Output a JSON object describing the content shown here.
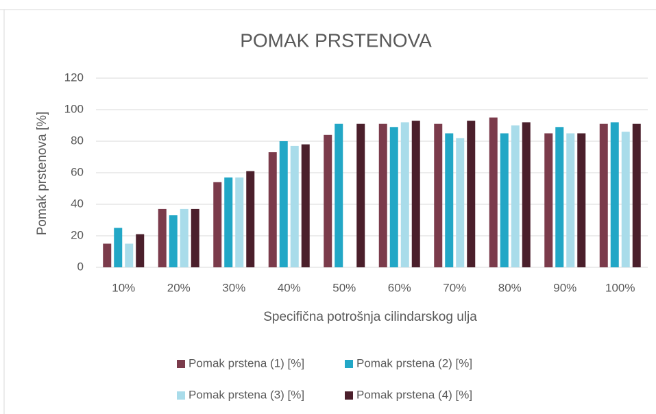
{
  "chart_data": {
    "type": "bar",
    "title": "POMAK PRSTENOVA",
    "x_label": "Specifična potrošnja cilindarskog ulja",
    "y_label": "Pomak prstenova [%]",
    "categories": [
      "10%",
      "20%",
      "30%",
      "40%",
      "50%",
      "60%",
      "70%",
      "80%",
      "90%",
      "100%"
    ],
    "series": [
      {
        "name": "Pomak prstena (1) [%]",
        "color": "#7b3b4b",
        "values": [
          15,
          37,
          54,
          73,
          84,
          91,
          91,
          95,
          85,
          91
        ]
      },
      {
        "name": "Pomak prstena (2) [%]",
        "color": "#22a7c6",
        "values": [
          25,
          33,
          57,
          80,
          91,
          89,
          85,
          85,
          89,
          92
        ]
      },
      {
        "name": "Pomak prstena (3) [%]",
        "color": "#a9dcea",
        "values": [
          15,
          37,
          57,
          77,
          null,
          92,
          82,
          90,
          85,
          86
        ]
      },
      {
        "name": "Pomak prstena (4) [%]",
        "color": "#4b1f2b",
        "values": [
          21,
          37,
          61,
          78,
          91,
          93,
          93,
          92,
          85,
          91
        ]
      }
    ],
    "ylim": [
      0,
      120
    ],
    "yticks": [
      0,
      20,
      40,
      60,
      80,
      100,
      120
    ],
    "grid": true,
    "legend": "bottom"
  }
}
